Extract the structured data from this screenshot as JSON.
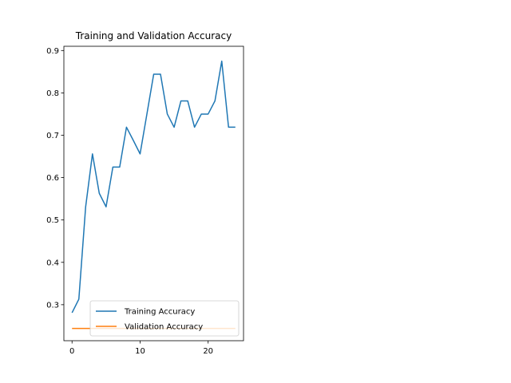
{
  "chart_data": {
    "type": "line",
    "title": "Training and Validation Accuracy",
    "xlabel": "",
    "ylabel": "",
    "xlim": [
      -1.2,
      25.2
    ],
    "ylim": [
      0.215,
      0.91
    ],
    "x_ticks": [
      0,
      10,
      20
    ],
    "y_ticks": [
      0.3,
      0.4,
      0.5,
      0.6,
      0.7,
      0.8,
      0.9
    ],
    "grid": false,
    "legend_position": "lower-right",
    "series": [
      {
        "name": "Training Accuracy",
        "color": "#1f77b4",
        "x": [
          0,
          1,
          2,
          3,
          4,
          5,
          6,
          7,
          8,
          9,
          10,
          11,
          12,
          13,
          14,
          15,
          16,
          17,
          18,
          19,
          20,
          21,
          22,
          23,
          24
        ],
        "values": [
          0.281,
          0.313,
          0.531,
          0.656,
          0.563,
          0.531,
          0.625,
          0.625,
          0.719,
          0.688,
          0.656,
          0.75,
          0.844,
          0.844,
          0.75,
          0.719,
          0.781,
          0.781,
          0.719,
          0.75,
          0.75,
          0.781,
          0.875,
          0.719,
          0.719
        ]
      },
      {
        "name": "Validation Accuracy",
        "color": "#ff7f0e",
        "x": [
          0,
          1,
          2,
          3,
          4,
          5,
          6,
          7,
          8,
          9,
          10,
          11,
          12,
          13,
          14,
          15,
          16,
          17,
          18,
          19,
          20,
          21,
          22,
          23,
          24
        ],
        "values": [
          0.244,
          0.244,
          0.244,
          0.244,
          0.244,
          0.244,
          0.244,
          0.244,
          0.244,
          0.244,
          0.244,
          0.244,
          0.244,
          0.244,
          0.244,
          0.244,
          0.244,
          0.244,
          0.244,
          0.244,
          0.244,
          0.244,
          0.244,
          0.244,
          0.244
        ]
      }
    ]
  }
}
